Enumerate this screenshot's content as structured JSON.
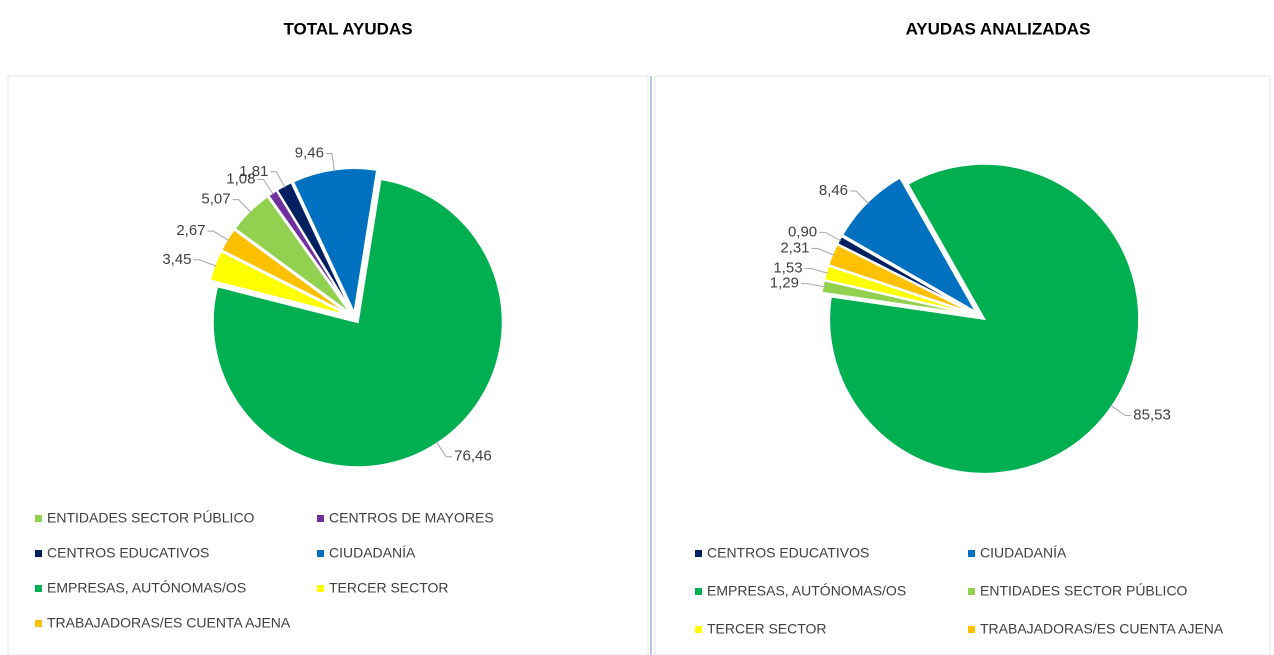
{
  "chart_data": [
    {
      "type": "pie",
      "title": "TOTAL AYUDAS",
      "categories": [
        "ENTIDADES SECTOR PÚBLICO",
        "CENTROS DE MAYORES",
        "CENTROS EDUCATIVOS",
        "CIUDADANÍA",
        "EMPRESAS, AUTÓNOMAS/OS",
        "TERCER SECTOR",
        "TRABAJADORAS/ES CUENTA AJENA"
      ],
      "values": [
        5.07,
        1.08,
        1.81,
        9.46,
        76.46,
        3.45,
        2.67
      ],
      "value_labels": [
        "5,07",
        "1,08",
        "1,81",
        "9,46",
        "76,46",
        "3,45",
        "2,67"
      ],
      "colors": [
        "#92d050",
        "#7030a0",
        "#002060",
        "#0070c0",
        "#00b050",
        "#ffff00",
        "#ffc000"
      ]
    },
    {
      "type": "pie",
      "title": "AYUDAS ANALIZADAS",
      "categories": [
        "CENTROS EDUCATIVOS",
        "CIUDADANÍA",
        "EMPRESAS, AUTÓNOMAS/OS",
        "ENTIDADES SECTOR PÚBLICO",
        "TERCER SECTOR",
        "TRABAJADORAS/ES CUENTA AJENA"
      ],
      "values": [
        0.9,
        8.46,
        85.53,
        1.29,
        1.53,
        2.31
      ],
      "value_labels": [
        "0,90",
        "8,46",
        "85,53",
        "1,29",
        "1,53",
        "2,31"
      ],
      "colors": [
        "#002060",
        "#0070c0",
        "#00b050",
        "#92d050",
        "#ffff00",
        "#ffc000"
      ]
    }
  ]
}
